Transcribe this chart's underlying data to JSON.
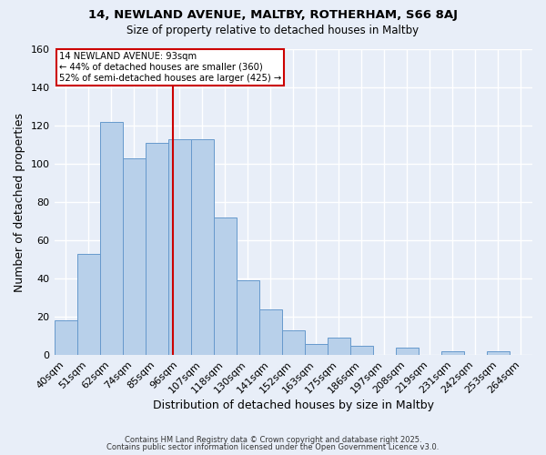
{
  "title1": "14, NEWLAND AVENUE, MALTBY, ROTHERHAM, S66 8AJ",
  "title2": "Size of property relative to detached houses in Maltby",
  "xlabel": "Distribution of detached houses by size in Maltby",
  "ylabel": "Number of detached properties",
  "bar_labels": [
    "40sqm",
    "51sqm",
    "62sqm",
    "74sqm",
    "85sqm",
    "96sqm",
    "107sqm",
    "118sqm",
    "130sqm",
    "141sqm",
    "152sqm",
    "163sqm",
    "175sqm",
    "186sqm",
    "197sqm",
    "208sqm",
    "219sqm",
    "231sqm",
    "242sqm",
    "253sqm",
    "264sqm"
  ],
  "bar_values": [
    18,
    53,
    122,
    103,
    111,
    113,
    113,
    72,
    39,
    24,
    13,
    6,
    9,
    5,
    0,
    4,
    0,
    2,
    0,
    2,
    0
  ],
  "bar_color": "#b8d0ea",
  "bar_edgecolor": "#6699cc",
  "background_color": "#e8eef8",
  "gridcolor": "#ffffff",
  "vline_x": 5,
  "vline_color": "#cc0000",
  "annotation_line1": "14 NEWLAND AVENUE: 93sqm",
  "annotation_line2": "← 44% of detached houses are smaller (360)",
  "annotation_line3": "52% of semi-detached houses are larger (425) →",
  "annotation_box_edgecolor": "#cc0000",
  "annotation_box_facecolor": "#ffffff",
  "ylim": [
    0,
    160
  ],
  "yticks": [
    0,
    20,
    40,
    60,
    80,
    100,
    120,
    140,
    160
  ],
  "footer1": "Contains HM Land Registry data © Crown copyright and database right 2025.",
  "footer2": "Contains public sector information licensed under the Open Government Licence v3.0.",
  "figsize": [
    6.0,
    5.0
  ],
  "dpi": 100
}
